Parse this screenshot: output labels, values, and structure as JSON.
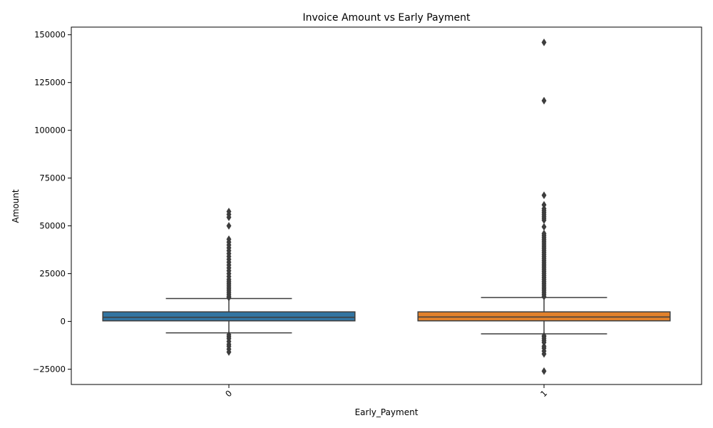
{
  "chart_data": {
    "type": "box",
    "title": "Invoice Amount vs Early Payment",
    "xlabel": "Early_Payment",
    "ylabel": "Amount",
    "categories": [
      "0",
      "1"
    ],
    "ylim": [
      -33000,
      154000
    ],
    "yticks": [
      -25000,
      0,
      25000,
      50000,
      75000,
      100000,
      125000,
      150000
    ],
    "ytick_labels": [
      "−25000",
      "0",
      "25000",
      "50000",
      "75000",
      "100000",
      "125000",
      "150000"
    ],
    "xtick_rotation_deg": 45,
    "grid": false,
    "legend": "none",
    "boxes": [
      {
        "category": "0",
        "color": "#3274a1",
        "q1": 300,
        "median": 2200,
        "q3": 5000,
        "whisker_low": -6000,
        "whisker_high": 12000,
        "outliers": [
          -16000,
          -14500,
          -13000,
          -12000,
          -10500,
          -9000,
          -8000,
          -7000,
          12500,
          13000,
          14000,
          15000,
          16000,
          17000,
          18000,
          19000,
          20000,
          21000,
          22000,
          23500,
          25000,
          26500,
          28000,
          29500,
          31000,
          32500,
          34000,
          35500,
          37000,
          38500,
          40000,
          41500,
          43000,
          50000,
          54500,
          56000,
          57500
        ]
      },
      {
        "category": "1",
        "color": "#e1812c",
        "q1": 300,
        "median": 2300,
        "q3": 5000,
        "whisker_low": -6500,
        "whisker_high": 12500,
        "outliers": [
          -26000,
          -17000,
          -15500,
          -14000,
          -13000,
          -11000,
          -10000,
          -9000,
          -8000,
          -7500,
          13000,
          14000,
          15000,
          16000,
          17000,
          18000,
          19000,
          20000,
          21000,
          22000,
          23000,
          24000,
          25000,
          26000,
          27000,
          28000,
          29000,
          30000,
          31000,
          32000,
          33000,
          34000,
          35000,
          36000,
          37000,
          38000,
          39000,
          40000,
          41000,
          42000,
          43000,
          44000,
          45000,
          46000,
          49500,
          53000,
          54000,
          55000,
          56000,
          57000,
          58000,
          59000,
          61000,
          66000,
          115500,
          146000
        ]
      }
    ]
  }
}
